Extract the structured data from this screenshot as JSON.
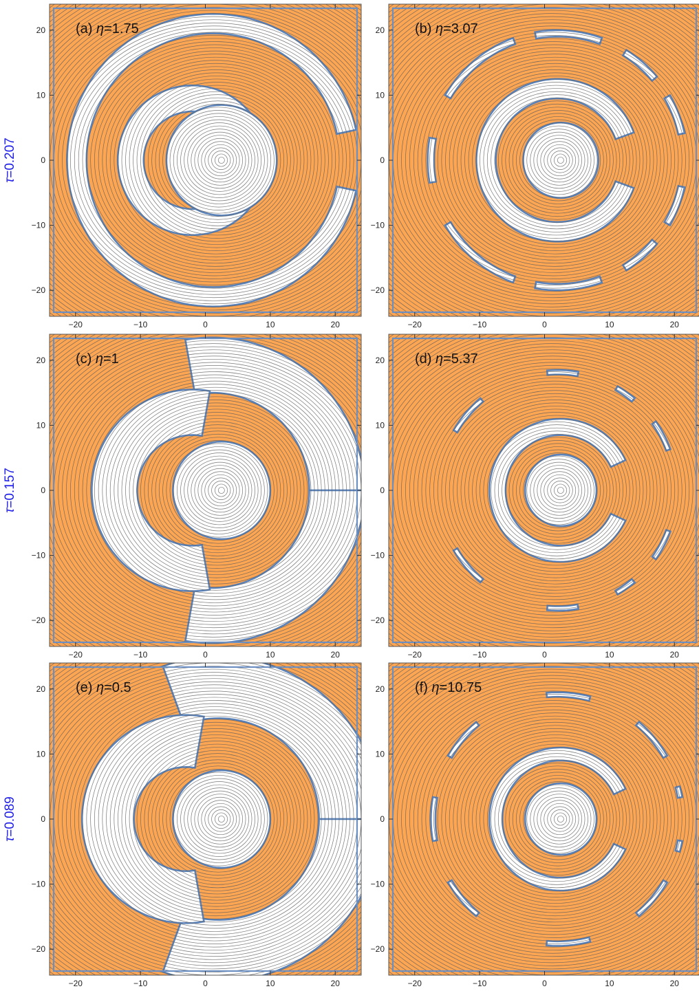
{
  "colors": {
    "fill_region": "#fca552",
    "empty_region": "#ffffff",
    "contour_line": "#5f5f5f",
    "region_border": "#5a82b8",
    "row_label": "#2020e8"
  },
  "chart_data": [
    {
      "type": "contour",
      "panel": "(a)",
      "eta_text": "η=1.75",
      "row_tau": "τ=0.207",
      "xlim": [
        -24,
        24
      ],
      "ylim": [
        -24,
        24
      ],
      "x_ticks": [
        -20,
        -10,
        0,
        10,
        20
      ],
      "y_ticks": [
        -20,
        -10,
        0,
        10,
        20
      ],
      "x_tick_labels": [
        "−20",
        "−10",
        "0",
        "10",
        "20"
      ],
      "y_tick_labels": [
        "−20",
        "−10",
        "0",
        "10",
        "20"
      ],
      "center": [
        2.5,
        0
      ],
      "rings": [
        {
          "cx": 1.2,
          "cy": 0,
          "ro": 22.5,
          "ri": 19.5,
          "gaps": [
            [
              -12,
              12
            ]
          ]
        },
        {
          "cx": -2.0,
          "cy": 0,
          "ro": 11.5,
          "ri": 7.5,
          "gaps": [
            [
              -40,
              40
            ]
          ]
        },
        {
          "cx": 2.5,
          "cy": 0,
          "ro": 8.5,
          "ri": 0,
          "gaps": []
        }
      ]
    },
    {
      "type": "contour",
      "panel": "(b)",
      "eta_text": "η=3.07",
      "row_tau": "",
      "xlim": [
        -24,
        24
      ],
      "ylim": [
        -24,
        24
      ],
      "x_ticks": [
        -20,
        -10,
        0,
        10,
        20
      ],
      "y_ticks": [
        -20,
        -10,
        0,
        10,
        20
      ],
      "x_tick_labels": [
        "−20",
        "−10",
        "0",
        "10",
        "20"
      ],
      "y_tick_labels": [
        "−20",
        "−10",
        "0",
        "10",
        "20"
      ],
      "center": [
        2.5,
        0
      ],
      "rings": [
        {
          "cx": 2.0,
          "cy": 0,
          "ro": 20.0,
          "ri": 19.0,
          "gaps": [
            [
              -70,
              -58
            ],
            [
              -40,
              -30
            ],
            [
              -12,
              12
            ],
            [
              30,
              40
            ],
            [
              58,
              70
            ],
            [
              100,
              110
            ],
            [
              150,
              170
            ],
            [
              -170,
              -150
            ],
            [
              -110,
              -100
            ]
          ]
        },
        {
          "cx": 2.0,
          "cy": 0,
          "ro": 12.5,
          "ri": 9.5,
          "gaps": [
            [
              -20,
              20
            ]
          ]
        },
        {
          "cx": 2.5,
          "cy": 0,
          "ro": 5.8,
          "ri": 0,
          "gaps": []
        }
      ]
    },
    {
      "type": "contour",
      "panel": "(c)",
      "eta_text": "η=1",
      "row_tau": "τ=0.157",
      "xlim": [
        -24,
        24
      ],
      "ylim": [
        -24,
        24
      ],
      "x_ticks": [
        -20,
        -10,
        0,
        10,
        20
      ],
      "y_ticks": [
        -20,
        -10,
        0,
        10,
        20
      ],
      "x_tick_labels": [
        "−20",
        "−10",
        "0",
        "10",
        "20"
      ],
      "y_tick_labels": [
        "−20",
        "−10",
        "0",
        "10",
        "20"
      ],
      "center": [
        2.5,
        0
      ],
      "rings": [
        {
          "cx": 1.0,
          "cy": 0,
          "ro": 23.5,
          "ri": 15.0,
          "gaps": [
            [
              100,
              260
            ]
          ]
        },
        {
          "cx": -2.0,
          "cy": 0,
          "ro": 15.5,
          "ri": 8.5,
          "gaps": [
            [
              -80,
              80
            ]
          ]
        },
        {
          "cx": 2.5,
          "cy": 0,
          "ro": 7.5,
          "ri": 0,
          "gaps": []
        }
      ]
    },
    {
      "type": "contour",
      "panel": "(d)",
      "eta_text": "η=5.37",
      "row_tau": "",
      "xlim": [
        -24,
        24
      ],
      "ylim": [
        -24,
        24
      ],
      "x_ticks": [
        -20,
        -10,
        0,
        10,
        20
      ],
      "y_ticks": [
        -20,
        -10,
        0,
        10,
        20
      ],
      "x_tick_labels": [
        "−20",
        "−10",
        "0",
        "10",
        "20"
      ],
      "y_tick_labels": [
        "−20",
        "−10",
        "0",
        "10",
        "20"
      ],
      "center": [
        2.5,
        0
      ],
      "rings": [
        {
          "cx": 2.0,
          "cy": 0,
          "ro": 18.5,
          "ri": 17.8,
          "gaps": [
            [
              -80,
              -60
            ],
            [
              -50,
              -35
            ],
            [
              -20,
              20
            ],
            [
              35,
              50
            ],
            [
              60,
              80
            ],
            [
              95,
              130
            ],
            [
              150,
              210
            ],
            [
              230,
              265
            ]
          ]
        },
        {
          "cx": 2.5,
          "cy": 0,
          "ro": 11.0,
          "ri": 8.5,
          "gaps": [
            [
              -25,
              25
            ]
          ]
        },
        {
          "cx": 2.5,
          "cy": 0,
          "ro": 5.5,
          "ri": 0,
          "gaps": []
        }
      ]
    },
    {
      "type": "contour",
      "panel": "(e)",
      "eta_text": "η=0.5",
      "row_tau": "τ=0.089",
      "xlim": [
        -24,
        24
      ],
      "ylim": [
        -24,
        24
      ],
      "x_ticks": [
        -20,
        -10,
        0,
        10,
        20
      ],
      "y_ticks": [
        -20,
        -10,
        0,
        10,
        20
      ],
      "x_tick_labels": [
        "−20",
        "−10",
        "0",
        "10",
        "20"
      ],
      "y_tick_labels": [
        "−20",
        "−10",
        "0",
        "10",
        "20"
      ],
      "center": [
        2.5,
        0
      ],
      "rings": [
        {
          "cx": 2.0,
          "cy": 0,
          "ro": 25.0,
          "ri": 15.5,
          "gaps": [
            [
              110,
              250
            ]
          ]
        },
        {
          "cx": -3.0,
          "cy": 0,
          "ro": 16.0,
          "ri": 8.0,
          "gaps": [
            [
              -80,
              80
            ]
          ]
        },
        {
          "cx": 2.5,
          "cy": 0,
          "ro": 7.5,
          "ri": 0,
          "gaps": []
        }
      ]
    },
    {
      "type": "contour",
      "panel": "(f)",
      "eta_text": "η=10.75",
      "row_tau": "",
      "xlim": [
        -24,
        24
      ],
      "ylim": [
        -24,
        24
      ],
      "x_ticks": [
        -20,
        -10,
        0,
        10,
        20
      ],
      "y_ticks": [
        -20,
        -10,
        0,
        10,
        20
      ],
      "x_tick_labels": [
        "−20",
        "−10",
        "0",
        "10",
        "20"
      ],
      "y_tick_labels": [
        "−20",
        "−10",
        "0",
        "10",
        "20"
      ],
      "center": [
        2.5,
        0
      ],
      "rings": [
        {
          "cx": 2.0,
          "cy": 0,
          "ro": 19.5,
          "ri": 18.8,
          "gaps": [
            [
              -75,
              -50
            ],
            [
              -30,
              -15
            ],
            [
              -10,
              10
            ],
            [
              15,
              30
            ],
            [
              50,
              75
            ],
            [
              95,
              130
            ],
            [
              150,
              170
            ],
            [
              190,
              210
            ],
            [
              230,
              265
            ]
          ]
        },
        {
          "cx": 2.5,
          "cy": 0,
          "ro": 11.0,
          "ri": 9.0,
          "gaps": [
            [
              -25,
              25
            ]
          ]
        },
        {
          "cx": 2.5,
          "cy": 0,
          "ro": 5.5,
          "ri": 0,
          "gaps": []
        }
      ]
    }
  ]
}
